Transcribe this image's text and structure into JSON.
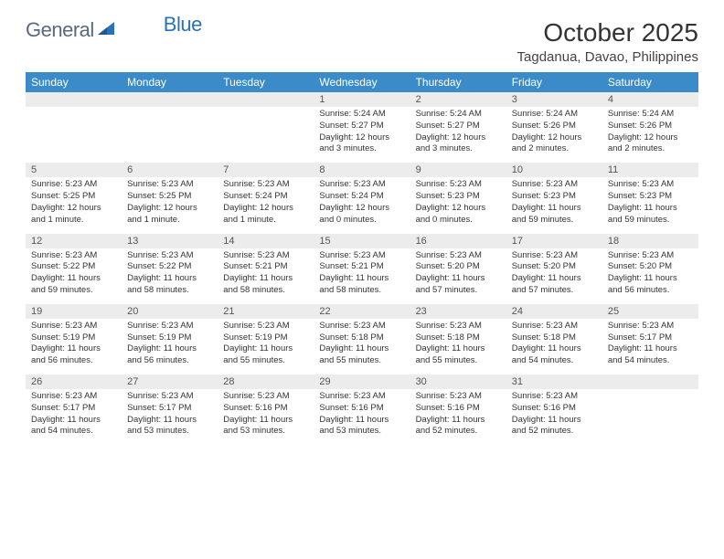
{
  "logo": {
    "text1": "General",
    "text2": "Blue"
  },
  "title": "October 2025",
  "location": "Tagdanua, Davao, Philippines",
  "colors": {
    "header_bg": "#3b8bc8",
    "header_text": "#ffffff",
    "numrow_bg": "#ececec",
    "numrow_border": "#2a72b5",
    "logo_gray": "#5a6a7a",
    "logo_blue": "#2a72b5",
    "page_bg": "#ffffff"
  },
  "daynames": [
    "Sunday",
    "Monday",
    "Tuesday",
    "Wednesday",
    "Thursday",
    "Friday",
    "Saturday"
  ],
  "weeks": [
    {
      "nums": [
        "",
        "",
        "",
        "1",
        "2",
        "3",
        "4"
      ],
      "cells": [
        "",
        "",
        "",
        "Sunrise: 5:24 AM\nSunset: 5:27 PM\nDaylight: 12 hours and 3 minutes.",
        "Sunrise: 5:24 AM\nSunset: 5:27 PM\nDaylight: 12 hours and 3 minutes.",
        "Sunrise: 5:24 AM\nSunset: 5:26 PM\nDaylight: 12 hours and 2 minutes.",
        "Sunrise: 5:24 AM\nSunset: 5:26 PM\nDaylight: 12 hours and 2 minutes."
      ]
    },
    {
      "nums": [
        "5",
        "6",
        "7",
        "8",
        "9",
        "10",
        "11"
      ],
      "cells": [
        "Sunrise: 5:23 AM\nSunset: 5:25 PM\nDaylight: 12 hours and 1 minute.",
        "Sunrise: 5:23 AM\nSunset: 5:25 PM\nDaylight: 12 hours and 1 minute.",
        "Sunrise: 5:23 AM\nSunset: 5:24 PM\nDaylight: 12 hours and 1 minute.",
        "Sunrise: 5:23 AM\nSunset: 5:24 PM\nDaylight: 12 hours and 0 minutes.",
        "Sunrise: 5:23 AM\nSunset: 5:23 PM\nDaylight: 12 hours and 0 minutes.",
        "Sunrise: 5:23 AM\nSunset: 5:23 PM\nDaylight: 11 hours and 59 minutes.",
        "Sunrise: 5:23 AM\nSunset: 5:23 PM\nDaylight: 11 hours and 59 minutes."
      ]
    },
    {
      "nums": [
        "12",
        "13",
        "14",
        "15",
        "16",
        "17",
        "18"
      ],
      "cells": [
        "Sunrise: 5:23 AM\nSunset: 5:22 PM\nDaylight: 11 hours and 59 minutes.",
        "Sunrise: 5:23 AM\nSunset: 5:22 PM\nDaylight: 11 hours and 58 minutes.",
        "Sunrise: 5:23 AM\nSunset: 5:21 PM\nDaylight: 11 hours and 58 minutes.",
        "Sunrise: 5:23 AM\nSunset: 5:21 PM\nDaylight: 11 hours and 58 minutes.",
        "Sunrise: 5:23 AM\nSunset: 5:20 PM\nDaylight: 11 hours and 57 minutes.",
        "Sunrise: 5:23 AM\nSunset: 5:20 PM\nDaylight: 11 hours and 57 minutes.",
        "Sunrise: 5:23 AM\nSunset: 5:20 PM\nDaylight: 11 hours and 56 minutes."
      ]
    },
    {
      "nums": [
        "19",
        "20",
        "21",
        "22",
        "23",
        "24",
        "25"
      ],
      "cells": [
        "Sunrise: 5:23 AM\nSunset: 5:19 PM\nDaylight: 11 hours and 56 minutes.",
        "Sunrise: 5:23 AM\nSunset: 5:19 PM\nDaylight: 11 hours and 56 minutes.",
        "Sunrise: 5:23 AM\nSunset: 5:19 PM\nDaylight: 11 hours and 55 minutes.",
        "Sunrise: 5:23 AM\nSunset: 5:18 PM\nDaylight: 11 hours and 55 minutes.",
        "Sunrise: 5:23 AM\nSunset: 5:18 PM\nDaylight: 11 hours and 55 minutes.",
        "Sunrise: 5:23 AM\nSunset: 5:18 PM\nDaylight: 11 hours and 54 minutes.",
        "Sunrise: 5:23 AM\nSunset: 5:17 PM\nDaylight: 11 hours and 54 minutes."
      ]
    },
    {
      "nums": [
        "26",
        "27",
        "28",
        "29",
        "30",
        "31",
        ""
      ],
      "cells": [
        "Sunrise: 5:23 AM\nSunset: 5:17 PM\nDaylight: 11 hours and 54 minutes.",
        "Sunrise: 5:23 AM\nSunset: 5:17 PM\nDaylight: 11 hours and 53 minutes.",
        "Sunrise: 5:23 AM\nSunset: 5:16 PM\nDaylight: 11 hours and 53 minutes.",
        "Sunrise: 5:23 AM\nSunset: 5:16 PM\nDaylight: 11 hours and 53 minutes.",
        "Sunrise: 5:23 AM\nSunset: 5:16 PM\nDaylight: 11 hours and 52 minutes.",
        "Sunrise: 5:23 AM\nSunset: 5:16 PM\nDaylight: 11 hours and 52 minutes.",
        ""
      ]
    }
  ]
}
